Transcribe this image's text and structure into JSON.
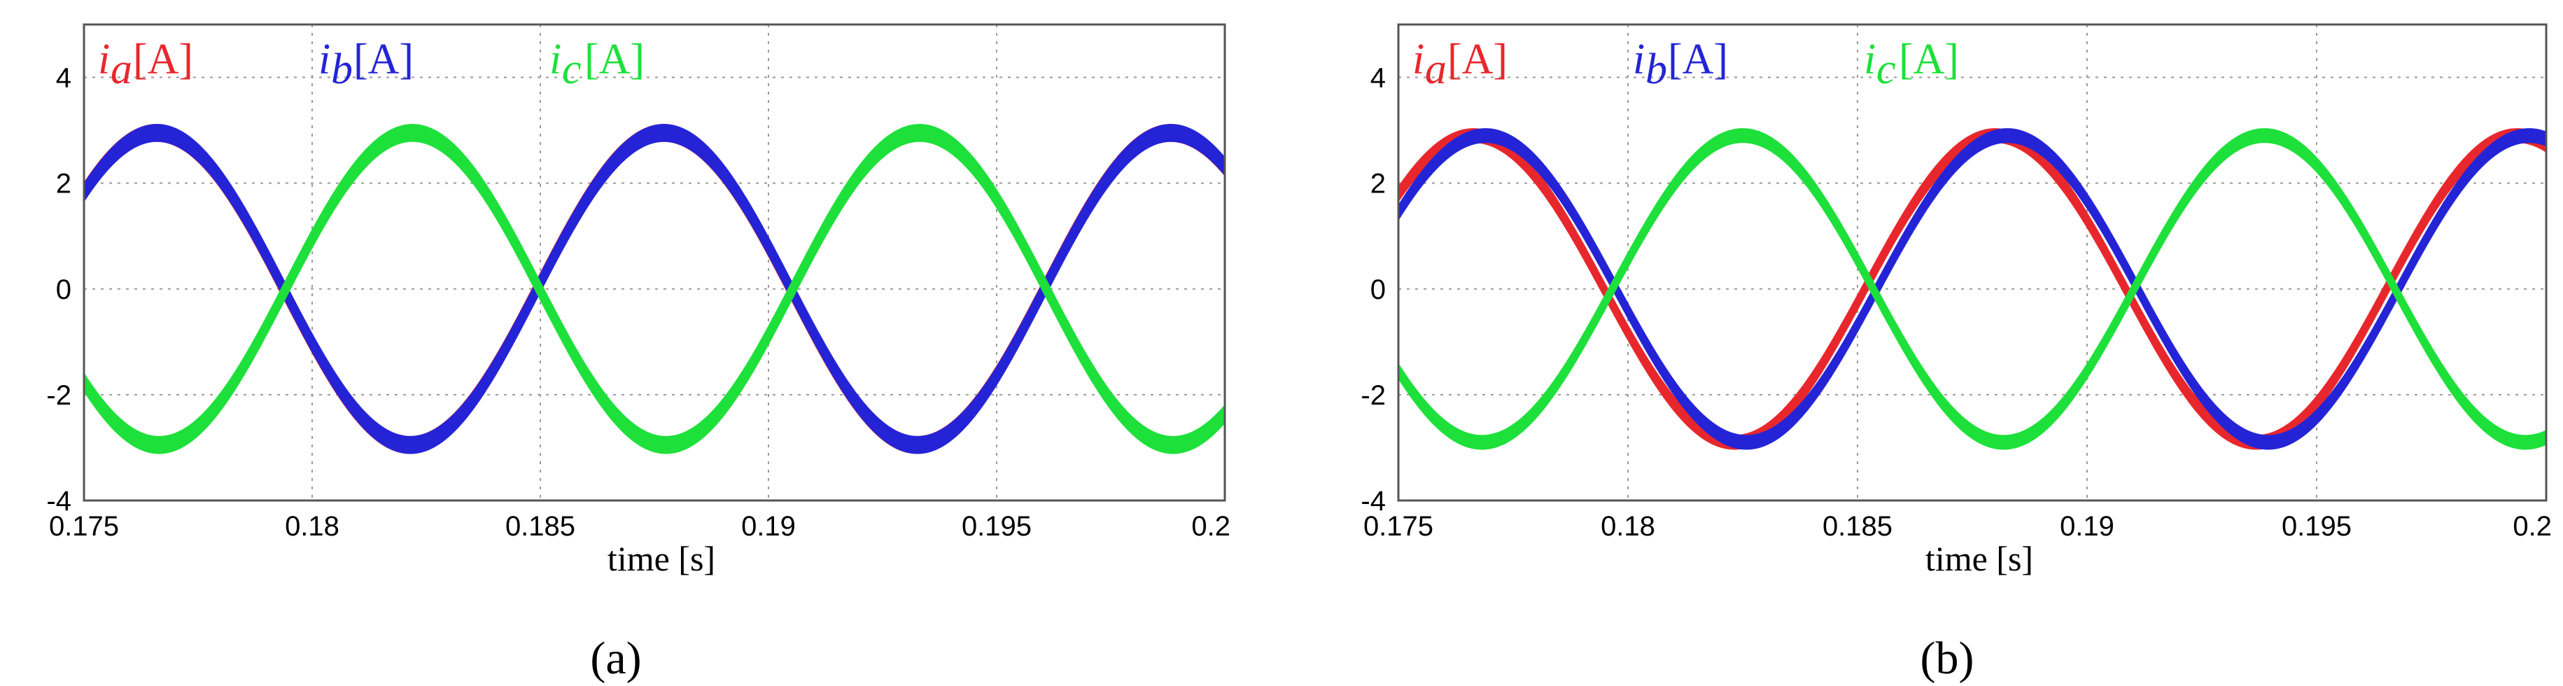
{
  "chart_data": [
    {
      "type": "line",
      "panel_label": "(a)",
      "xlabel": "time [s]",
      "ylabel": "",
      "xlim": [
        0.175,
        0.2
      ],
      "ylim": [
        -4,
        5
      ],
      "x_ticks": [
        0.175,
        0.18,
        0.185,
        0.19,
        0.195,
        0.2
      ],
      "x_tick_labels": [
        "0.175",
        "0.18",
        "0.185",
        "0.19",
        "0.195",
        "0.2"
      ],
      "y_ticks": [
        -4,
        -2,
        0,
        2,
        4
      ],
      "y_tick_labels": [
        "-4",
        "-2",
        "0",
        "2",
        "4"
      ],
      "grid": true,
      "legend_placement": "top-left",
      "series": [
        {
          "name": "ia",
          "symbol": "i",
          "subscript": "a",
          "unit": "[A]",
          "color": "#e8272d",
          "amplitude": 2.95,
          "frequency_hz": 90,
          "peak_time": 0.1877,
          "ripple": 0.15
        },
        {
          "name": "ib",
          "symbol": "i",
          "subscript": "b",
          "unit": "[A]",
          "color": "#2424d6",
          "amplitude": 2.95,
          "frequency_hz": 90,
          "peak_time": 0.1766,
          "ripple": 0.15
        },
        {
          "name": "ic",
          "symbol": "i",
          "subscript": "c",
          "unit": "[A]",
          "color": "#1ee03a",
          "amplitude": 2.95,
          "frequency_hz": 90,
          "peak_time": 0.1822,
          "ripple": 0.15
        }
      ]
    },
    {
      "type": "line",
      "panel_label": "(b)",
      "xlabel": "time [s]",
      "ylabel": "",
      "xlim": [
        0.175,
        0.2
      ],
      "ylim": [
        -4,
        5
      ],
      "x_ticks": [
        0.175,
        0.18,
        0.185,
        0.19,
        0.195,
        0.2
      ],
      "x_tick_labels": [
        "0.175",
        "0.18",
        "0.185",
        "0.19",
        "0.195",
        "0.2"
      ],
      "y_ticks": [
        -4,
        -2,
        0,
        2,
        4
      ],
      "y_tick_labels": [
        "-4",
        "-2",
        "0",
        "2",
        "4"
      ],
      "grid": true,
      "legend_placement": "top-left",
      "series": [
        {
          "name": "ia",
          "symbol": "i",
          "subscript": "a",
          "unit": "[A]",
          "color": "#e8272d",
          "amplitude": 2.9,
          "frequency_hz": 88,
          "peak_time": 0.188,
          "ripple": 0.12
        },
        {
          "name": "ib",
          "symbol": "i",
          "subscript": "b",
          "unit": "[A]",
          "color": "#2424d6",
          "amplitude": 2.9,
          "frequency_hz": 88,
          "peak_time": 0.1769,
          "ripple": 0.12
        },
        {
          "name": "ic",
          "symbol": "i",
          "subscript": "c",
          "unit": "[A]",
          "color": "#1ee03a",
          "amplitude": 2.9,
          "frequency_hz": 88,
          "peak_time": 0.1825,
          "ripple": 0.12
        }
      ]
    }
  ]
}
